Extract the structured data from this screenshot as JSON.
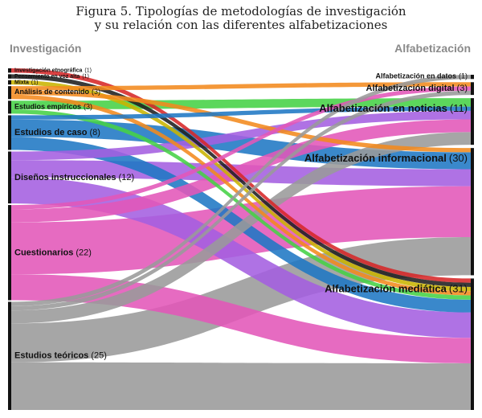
{
  "title": {
    "line1": "Figura 5. Tipologías de metodologías de investigación",
    "line2": "y su relación con las diferentes alfabetizaciones"
  },
  "left_header": "Investigación",
  "right_header": "Alfabetización",
  "sources": [
    {
      "id": "etno",
      "name": "Investigación etnográfica",
      "count": "(1)",
      "value": 1,
      "color": "#d62728"
    },
    {
      "id": "pens",
      "name": "Pensamiento en voz alta",
      "count": "(1)",
      "value": 1,
      "color": "#1f1f1f"
    },
    {
      "id": "mixt",
      "name": "Mixta",
      "count": "(1)",
      "value": 1,
      "color": "#c9b400"
    },
    {
      "id": "anal",
      "name": "Análisis de contenido",
      "count": "(3)",
      "value": 3,
      "color": "#f28a1e"
    },
    {
      "id": "empi",
      "name": "Estudios empíricos",
      "count": "(3)",
      "value": 3,
      "color": "#46d146"
    },
    {
      "id": "caso",
      "name": "Estudios de caso",
      "count": "(8)",
      "value": 8,
      "color": "#1f77c4"
    },
    {
      "id": "dise",
      "name": "Diseños instruccionales",
      "count": "(12)",
      "value": 12,
      "color": "#a45ee0"
    },
    {
      "id": "cues",
      "name": "Cuestionarios",
      "count": "(22)",
      "value": 22,
      "color": "#e356b8"
    },
    {
      "id": "teor",
      "name": "Estudios teóricos",
      "count": "(25)",
      "value": 25,
      "color": "#9a9a9a"
    }
  ],
  "targets": [
    {
      "id": "datos",
      "name": "Alfabetización en datos",
      "count": "(1)",
      "value": 1
    },
    {
      "id": "digit",
      "name": "Alfabetización digital",
      "count": "(3)",
      "value": 3
    },
    {
      "id": "notic",
      "name": "Alfabetización en noticias",
      "count": "(11)",
      "value": 11
    },
    {
      "id": "infor",
      "name": "Alfabetización informacional",
      "count": "(30)",
      "value": 30
    },
    {
      "id": "media",
      "name": "Alfabetización mediática",
      "count": "(31)",
      "value": 31
    }
  ],
  "links": [
    {
      "source": "etno",
      "target": "media",
      "value": 1
    },
    {
      "source": "pens",
      "target": "media",
      "value": 1
    },
    {
      "source": "mixt",
      "target": "media",
      "value": 1
    },
    {
      "source": "anal",
      "target": "digit",
      "value": 1
    },
    {
      "source": "anal",
      "target": "infor",
      "value": 1
    },
    {
      "source": "anal",
      "target": "media",
      "value": 1
    },
    {
      "source": "empi",
      "target": "notic",
      "value": 2
    },
    {
      "source": "empi",
      "target": "media",
      "value": 1
    },
    {
      "source": "caso",
      "target": "notic",
      "value": 1
    },
    {
      "source": "caso",
      "target": "infor",
      "value": 4
    },
    {
      "source": "caso",
      "target": "media",
      "value": 3
    },
    {
      "source": "dise",
      "target": "notic",
      "value": 2
    },
    {
      "source": "dise",
      "target": "infor",
      "value": 4
    },
    {
      "source": "dise",
      "target": "media",
      "value": 6
    },
    {
      "source": "cues",
      "target": "digit",
      "value": 1
    },
    {
      "source": "cues",
      "target": "notic",
      "value": 3
    },
    {
      "source": "cues",
      "target": "infor",
      "value": 12
    },
    {
      "source": "cues",
      "target": "media",
      "value": 6
    },
    {
      "source": "teor",
      "target": "datos",
      "value": 1
    },
    {
      "source": "teor",
      "target": "digit",
      "value": 1
    },
    {
      "source": "teor",
      "target": "notic",
      "value": 3
    },
    {
      "source": "teor",
      "target": "infor",
      "value": 9
    },
    {
      "source": "teor",
      "target": "media",
      "value": 11
    }
  ]
}
